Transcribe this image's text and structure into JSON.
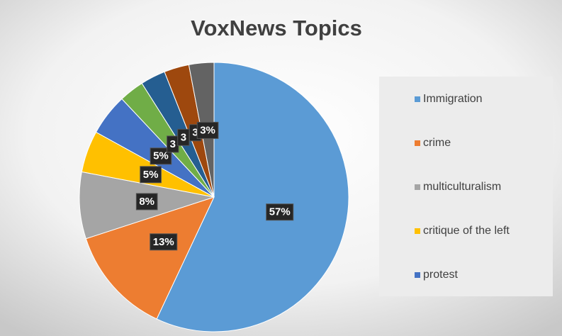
{
  "chart_data": {
    "type": "pie",
    "title": "VoxNews Topics",
    "categories": [
      "Immigration",
      "crime",
      "multiculturalism",
      "critique of the left",
      "protest",
      null,
      null,
      null,
      null
    ],
    "values": [
      57,
      13,
      8,
      5,
      5,
      3,
      3,
      3,
      3
    ],
    "value_labels": [
      "57%",
      "13%",
      "8%",
      "5%",
      "5%",
      "3",
      "3",
      "3",
      "3%"
    ],
    "colors": [
      "#5b9bd5",
      "#ed7d31",
      "#a5a5a5",
      "#ffc000",
      "#4472c4",
      "#70ad47",
      "#255e91",
      "#9e480e",
      "#636363"
    ],
    "legend": "right"
  }
}
